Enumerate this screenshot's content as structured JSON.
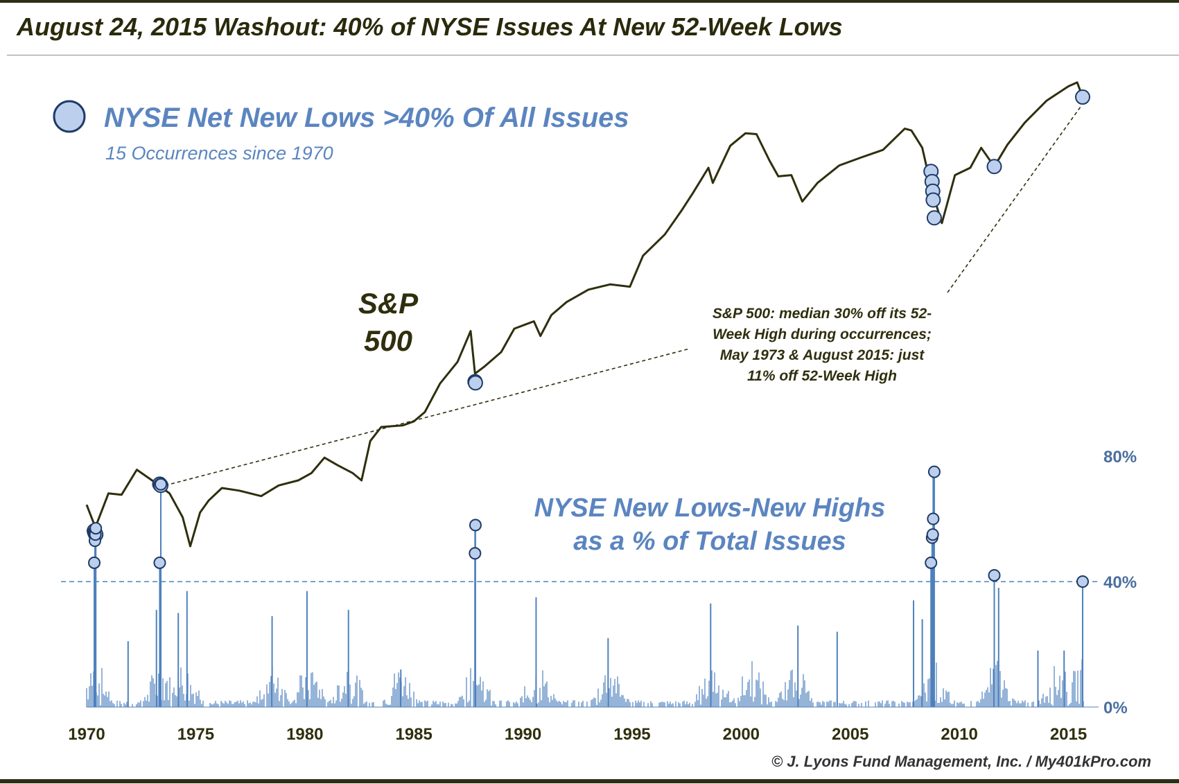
{
  "title": "August 24, 2015 Washout: 40% of NYSE Issues At New 52-Week Lows",
  "credit": "© J. Lyons Fund Management, Inc. / My401kPro.com",
  "colors": {
    "sp500_line": "#2f2f0e",
    "new_lows_bars": "#4f81bd",
    "marker_fill": "#bcd0ee",
    "marker_stroke": "#1f3a66",
    "legend_text": "#5b85c0",
    "threshold_line": "#4f81bd"
  },
  "icons": {
    "legend_marker": "blue-sphere-marker-icon"
  },
  "chart_data": [
    {
      "type": "line",
      "series_label": "S&P\n500",
      "legend": {
        "title": "NYSE Net New Lows >40% Of All Issues",
        "subtitle": "15 Occurrences since 1970"
      },
      "annotation": "S&P 500: median 30% off its 52-\nWeek High during occurrences;\nMay 1973 & August 2015: just\n11% off 52-Week High",
      "x": [
        1970.0,
        1970.4,
        1971.0,
        1971.6,
        1972.3,
        1973.0,
        1973.3,
        1973.8,
        1974.4,
        1974.75,
        1975.2,
        1975.6,
        1976.2,
        1977.0,
        1978.0,
        1978.8,
        1979.7,
        1980.3,
        1980.9,
        1981.5,
        1982.2,
        1982.6,
        1983.0,
        1983.5,
        1984.5,
        1985.0,
        1985.5,
        1986.2,
        1987.0,
        1987.6,
        1987.8,
        1988.2,
        1989.0,
        1989.6,
        1990.5,
        1990.8,
        1991.3,
        1992.0,
        1993.0,
        1994.0,
        1994.9,
        1995.5,
        1996.5,
        1997.3,
        1997.8,
        1998.5,
        1998.7,
        1999.5,
        2000.2,
        2000.7,
        2001.3,
        2001.7,
        2002.3,
        2002.8,
        2003.5,
        2004.5,
        2005.5,
        2006.5,
        2007.5,
        2007.8,
        2008.3,
        2008.75,
        2009.2,
        2009.8,
        2010.5,
        2011.0,
        2011.6,
        2012.2,
        2013.0,
        2014.0,
        2015.0,
        2015.4,
        2015.65
      ],
      "values": [
        90,
        76,
        98,
        97,
        117,
        108,
        104,
        98,
        82,
        66,
        85,
        93,
        102,
        100,
        96,
        104,
        108,
        114,
        128,
        121,
        114,
        108,
        145,
        161,
        163,
        168,
        180,
        223,
        262,
        330,
        240,
        252,
        282,
        336,
        355,
        318,
        372,
        410,
        450,
        468,
        460,
        580,
        680,
        820,
        930,
        1120,
        1000,
        1320,
        1450,
        1440,
        1180,
        1050,
        1060,
        870,
        1000,
        1140,
        1210,
        1280,
        1500,
        1480,
        1300,
        940,
        740,
        1060,
        1120,
        1300,
        1130,
        1330,
        1570,
        1850,
        2060,
        2120,
        1900
      ],
      "ylim": [
        30,
        2400
      ],
      "scale": "log"
    },
    {
      "type": "bar",
      "title": "NYSE New Lows-New Highs\nas a % of Total Issues",
      "x_ticks": [
        1970,
        1975,
        1980,
        1985,
        1990,
        1995,
        2000,
        2005,
        2010,
        2015
      ],
      "y_ticks": [
        "0%",
        "40%",
        "80%"
      ],
      "ylim": [
        0,
        80
      ],
      "threshold": 40,
      "spikes": [
        {
          "x": 1970.4,
          "y": 46
        },
        {
          "x": 1973.4,
          "y": 71
        },
        {
          "x": 1987.8,
          "y": 58
        },
        {
          "x": 2008.8,
          "y": 75
        },
        {
          "x": 2011.6,
          "y": 42
        },
        {
          "x": 2015.65,
          "y": 40
        },
        {
          "x": 1974.6,
          "y": 37
        },
        {
          "x": 1980.1,
          "y": 37
        },
        {
          "x": 1990.6,
          "y": 35
        },
        {
          "x": 1998.6,
          "y": 33
        },
        {
          "x": 1982.0,
          "y": 31
        },
        {
          "x": 1978.5,
          "y": 29
        },
        {
          "x": 1973.2,
          "y": 31
        },
        {
          "x": 1974.2,
          "y": 30
        },
        {
          "x": 2002.6,
          "y": 26
        },
        {
          "x": 2004.4,
          "y": 24
        },
        {
          "x": 1993.9,
          "y": 22
        },
        {
          "x": 2007.9,
          "y": 34
        },
        {
          "x": 2008.3,
          "y": 28
        },
        {
          "x": 2011.8,
          "y": 38
        },
        {
          "x": 1971.9,
          "y": 21
        },
        {
          "x": 1984.4,
          "y": 12
        },
        {
          "x": 2014.8,
          "y": 18
        },
        {
          "x": 2013.6,
          "y": 18
        }
      ],
      "occurrences": [
        {
          "x": 1970.35,
          "y": 46,
          "sp": 74
        },
        {
          "x": 1970.38,
          "y": 53,
          "sp": 73
        },
        {
          "x": 1970.4,
          "y": 55,
          "sp": 72.5
        },
        {
          "x": 1970.42,
          "y": 57,
          "sp": 72
        },
        {
          "x": 1973.35,
          "y": 46,
          "sp": 105
        },
        {
          "x": 1973.4,
          "y": 71,
          "sp": 104
        },
        {
          "x": 1987.8,
          "y": 49,
          "sp": 226
        },
        {
          "x": 1987.82,
          "y": 58,
          "sp": 224
        },
        {
          "x": 2008.7,
          "y": 46,
          "sp": 1090
        },
        {
          "x": 2008.75,
          "y": 54,
          "sp": 1010
        },
        {
          "x": 2008.78,
          "y": 55,
          "sp": 940
        },
        {
          "x": 2008.8,
          "y": 60,
          "sp": 880
        },
        {
          "x": 2008.85,
          "y": 75,
          "sp": 770
        },
        {
          "x": 2011.6,
          "y": 42,
          "sp": 1130
        },
        {
          "x": 2015.65,
          "y": 40,
          "sp": 1900
        }
      ]
    }
  ]
}
